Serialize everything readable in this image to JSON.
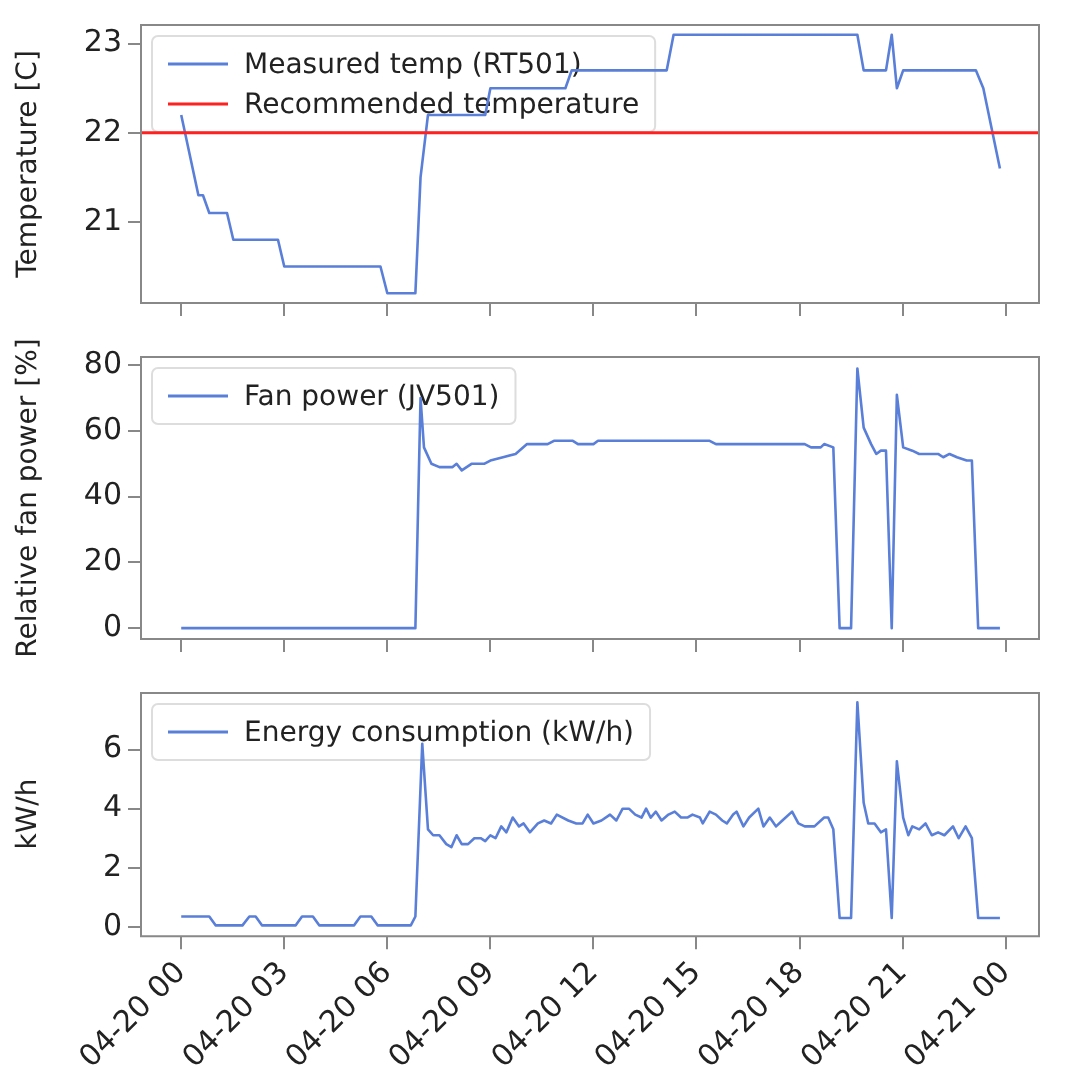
{
  "chart_data": [
    {
      "type": "line",
      "ylabel": "Temperature [C]",
      "xlim": [
        "--04-19T22:48",
        "--04-21T01:00"
      ],
      "ylim": [
        20.08,
        23.22
      ],
      "yticks": [
        21,
        22,
        23
      ],
      "xticks": [
        {
          "value": "--04-20T00:00",
          "label": null
        },
        {
          "value": "--04-20T03:00",
          "label": null
        },
        {
          "value": "--04-20T06:00",
          "label": null
        },
        {
          "value": "--04-20T09:00",
          "label": null
        },
        {
          "value": "--04-20T12:00",
          "label": null
        },
        {
          "value": "--04-20T15:00",
          "label": null
        },
        {
          "value": "--04-20T18:00",
          "label": null
        },
        {
          "value": "--04-20T21:00",
          "label": null
        },
        {
          "value": "--04-21T00:00",
          "label": null
        }
      ],
      "tick_labels": "y",
      "legend": "top left",
      "ref_lines": [
        {
          "axis": "y",
          "value": 22,
          "label": "Recommended temperature",
          "color": "#ff2020"
        }
      ],
      "series": [
        {
          "name": "Measured temp (RT501)",
          "color": "#5a7fd8",
          "x": [
            "--04-20T00:00",
            "--04-20T00:30",
            "--04-20T00:38",
            "--04-20T00:49",
            "--04-20T01:20",
            "--04-20T01:31",
            "--04-20T02:49",
            "--04-20T03:00",
            "--04-20T05:48",
            "--04-20T06:00",
            "--04-20T06:49",
            "--04-20T06:58",
            "--04-20T07:11",
            "--04-20T08:51",
            "--04-20T09:00",
            "--04-20T11:11",
            "--04-20T11:22",
            "--04-20T14:08",
            "--04-20T14:20",
            "--04-20T19:41",
            "--04-20T19:52",
            "--04-20T20:31",
            "--04-20T20:41",
            "--04-20T20:50",
            "--04-20T21:01",
            "--04-20T23:08",
            "--04-20T23:21",
            "--04-20T23:50"
          ],
          "values": [
            22.2,
            21.3,
            21.3,
            21.1,
            21.1,
            20.8,
            20.8,
            20.5,
            20.5,
            20.2,
            20.2,
            21.5,
            22.2,
            22.2,
            22.5,
            22.5,
            22.7,
            22.7,
            23.1,
            23.1,
            22.7,
            22.7,
            23.1,
            22.5,
            22.7,
            22.7,
            22.5,
            21.6
          ]
        }
      ]
    },
    {
      "type": "line",
      "ylabel": "Relative fan power [%]",
      "xlim": [
        "--04-19T22:48",
        "--04-21T01:00"
      ],
      "ylim": [
        -3.6,
        82.8
      ],
      "yticks": [
        0,
        20,
        40,
        60,
        80
      ],
      "xticks": [
        {
          "value": "--04-20T00:00",
          "label": null
        },
        {
          "value": "--04-20T03:00",
          "label": null
        },
        {
          "value": "--04-20T06:00",
          "label": null
        },
        {
          "value": "--04-20T09:00",
          "label": null
        },
        {
          "value": "--04-20T12:00",
          "label": null
        },
        {
          "value": "--04-20T15:00",
          "label": null
        },
        {
          "value": "--04-20T18:00",
          "label": null
        },
        {
          "value": "--04-20T21:00",
          "label": null
        },
        {
          "value": "--04-21T00:00",
          "label": null
        }
      ],
      "tick_labels": "y",
      "legend": "top left",
      "series": [
        {
          "name": "Fan power (JV501)",
          "color": "#5a7fd8",
          "x": [
            "--04-20T00:00",
            "--04-20T06:49",
            "--04-20T06:58",
            "--04-20T07:04",
            "--04-20T07:17",
            "--04-20T07:31",
            "--04-20T07:54",
            "--04-20T08:01",
            "--04-20T08:10",
            "--04-20T08:27",
            "--04-20T08:49",
            "--04-20T09:00",
            "--04-20T09:22",
            "--04-20T09:44",
            "--04-20T10:04",
            "--04-20T10:40",
            "--04-20T10:51",
            "--04-20T11:24",
            "--04-20T11:33",
            "--04-20T12:00",
            "--04-20T12:08",
            "--04-20T15:23",
            "--04-20T15:34",
            "--04-20T18:09",
            "--04-20T18:20",
            "--04-20T18:37",
            "--04-20T18:43",
            "--04-20T18:59",
            "--04-20T19:10",
            "--04-20T19:30",
            "--04-20T19:41",
            "--04-20T19:52",
            "--04-20T20:05",
            "--04-20T20:14",
            "--04-20T20:22",
            "--04-20T20:31",
            "--04-20T20:41",
            "--04-20T20:50",
            "--04-20T21:01",
            "--04-20T21:17",
            "--04-20T21:29",
            "--04-20T22:02",
            "--04-20T22:11",
            "--04-20T22:22",
            "--04-20T22:35",
            "--04-20T22:52",
            "--04-20T23:01",
            "--04-20T23:12",
            "--04-20T23:50"
          ],
          "values": [
            0,
            0,
            70,
            55,
            50,
            49,
            49,
            50,
            48,
            50,
            50,
            51,
            52,
            53,
            56,
            56,
            57,
            57,
            56,
            56,
            57,
            57,
            56,
            56,
            55,
            55,
            56,
            55,
            0,
            0,
            79,
            61,
            56,
            53,
            54,
            54,
            0,
            71,
            55,
            54,
            53,
            53,
            52,
            53,
            52,
            51,
            51,
            0,
            0
          ]
        }
      ]
    },
    {
      "type": "line",
      "ylabel": "kW/h",
      "xlim": [
        "--04-19T22:48",
        "--04-21T01:00"
      ],
      "ylim": [
        -0.35,
        7.95
      ],
      "yticks": [
        0,
        2,
        4,
        6
      ],
      "xticks": [
        {
          "value": "--04-20T00:00",
          "label": "04-20 00"
        },
        {
          "value": "--04-20T03:00",
          "label": "04-20 03"
        },
        {
          "value": "--04-20T06:00",
          "label": "04-20 06"
        },
        {
          "value": "--04-20T09:00",
          "label": "04-20 09"
        },
        {
          "value": "--04-20T12:00",
          "label": "04-20 12"
        },
        {
          "value": "--04-20T15:00",
          "label": "04-20 15"
        },
        {
          "value": "--04-20T18:00",
          "label": "04-20 18"
        },
        {
          "value": "--04-20T21:00",
          "label": "04-20 21"
        },
        {
          "value": "--04-21T00:00",
          "label": "04-21 00"
        }
      ],
      "legend": "top left",
      "series": [
        {
          "name": "Energy consumption (kW/h)",
          "color": "#5a7fd8",
          "x": [
            "--04-20T00:00",
            "--04-20T00:49",
            "--04-20T01:00",
            "--04-20T01:47",
            "--04-20T01:59",
            "--04-20T02:10",
            "--04-20T02:21",
            "--04-20T03:20",
            "--04-20T03:31",
            "--04-20T03:50",
            "--04-20T04:01",
            "--04-20T05:02",
            "--04-20T05:13",
            "--04-20T05:32",
            "--04-20T05:43",
            "--04-20T06:41",
            "--04-20T06:49",
            "--04-20T07:01",
            "--04-20T07:11",
            "--04-20T07:20",
            "--04-20T07:31",
            "--04-20T07:43",
            "--04-20T07:52",
            "--04-20T08:01",
            "--04-20T08:10",
            "--04-20T08:21",
            "--04-20T08:32",
            "--04-20T08:43",
            "--04-20T08:51",
            "--04-20T09:00",
            "--04-20T09:09",
            "--04-20T09:19",
            "--04-20T09:28",
            "--04-20T09:39",
            "--04-20T09:50",
            "--04-20T09:58",
            "--04-20T10:09",
            "--04-20T10:23",
            "--04-20T10:34",
            "--04-20T10:46",
            "--04-20T10:56",
            "--04-20T11:16",
            "--04-20T11:30",
            "--04-20T11:41",
            "--04-20T11:50",
            "--04-20T12:00",
            "--04-20T12:14",
            "--04-20T12:29",
            "--04-20T12:40",
            "--04-20T12:51",
            "--04-20T13:02",
            "--04-20T13:13",
            "--04-20T13:24",
            "--04-20T13:32",
            "--04-20T13:40",
            "--04-20T13:49",
            "--04-20T13:59",
            "--04-20T14:11",
            "--04-20T14:22",
            "--04-20T14:33",
            "--04-20T14:44",
            "--04-20T14:53",
            "--04-20T15:06",
            "--04-20T15:11",
            "--04-20T15:23",
            "--04-20T15:34",
            "--04-20T15:45",
            "--04-20T15:53",
            "--04-20T16:04",
            "--04-20T16:10",
            "--04-20T16:22",
            "--04-20T16:32",
            "--04-20T16:48",
            "--04-20T16:57",
            "--04-20T17:08",
            "--04-20T17:19",
            "--04-20T17:30",
            "--04-20T17:47",
            "--04-20T17:58",
            "--04-20T18:09",
            "--04-20T18:26",
            "--04-20T18:43",
            "--04-20T18:50",
            "--04-20T18:59",
            "--04-20T19:10",
            "--04-20T19:30",
            "--04-20T19:41",
            "--04-20T19:52",
            "--04-20T20:00",
            "--04-20T20:11",
            "--04-20T20:22",
            "--04-20T20:31",
            "--04-20T20:41",
            "--04-20T20:50",
            "--04-20T21:01",
            "--04-20T21:10",
            "--04-20T21:17",
            "--04-20T21:29",
            "--04-20T21:40",
            "--04-20T21:51",
            "--04-20T22:02",
            "--04-20T22:13",
            "--04-20T22:28",
            "--04-20T22:38",
            "--04-20T22:50",
            "--04-20T23:01",
            "--04-20T23:12",
            "--04-20T23:50"
          ],
          "values": [
            0.35,
            0.35,
            0.05,
            0.05,
            0.35,
            0.35,
            0.05,
            0.05,
            0.35,
            0.35,
            0.05,
            0.05,
            0.35,
            0.35,
            0.05,
            0.05,
            0.35,
            6.2,
            3.3,
            3.1,
            3.1,
            2.8,
            2.7,
            3.1,
            2.8,
            2.8,
            3.0,
            3.0,
            2.9,
            3.1,
            3.0,
            3.4,
            3.2,
            3.7,
            3.4,
            3.5,
            3.2,
            3.5,
            3.6,
            3.5,
            3.8,
            3.6,
            3.5,
            3.5,
            3.8,
            3.5,
            3.6,
            3.8,
            3.6,
            4.0,
            4.0,
            3.8,
            3.7,
            4.0,
            3.7,
            3.9,
            3.6,
            3.8,
            3.9,
            3.7,
            3.7,
            3.8,
            3.7,
            3.5,
            3.9,
            3.8,
            3.6,
            3.5,
            3.8,
            3.9,
            3.4,
            3.7,
            4.0,
            3.4,
            3.7,
            3.4,
            3.6,
            3.9,
            3.5,
            3.4,
            3.4,
            3.7,
            3.7,
            3.3,
            0.3,
            0.3,
            7.6,
            4.2,
            3.5,
            3.5,
            3.2,
            3.3,
            0.3,
            5.6,
            3.7,
            3.1,
            3.4,
            3.3,
            3.5,
            3.1,
            3.2,
            3.1,
            3.4,
            3.0,
            3.4,
            3.0,
            0.3,
            0.3
          ]
        }
      ]
    }
  ]
}
